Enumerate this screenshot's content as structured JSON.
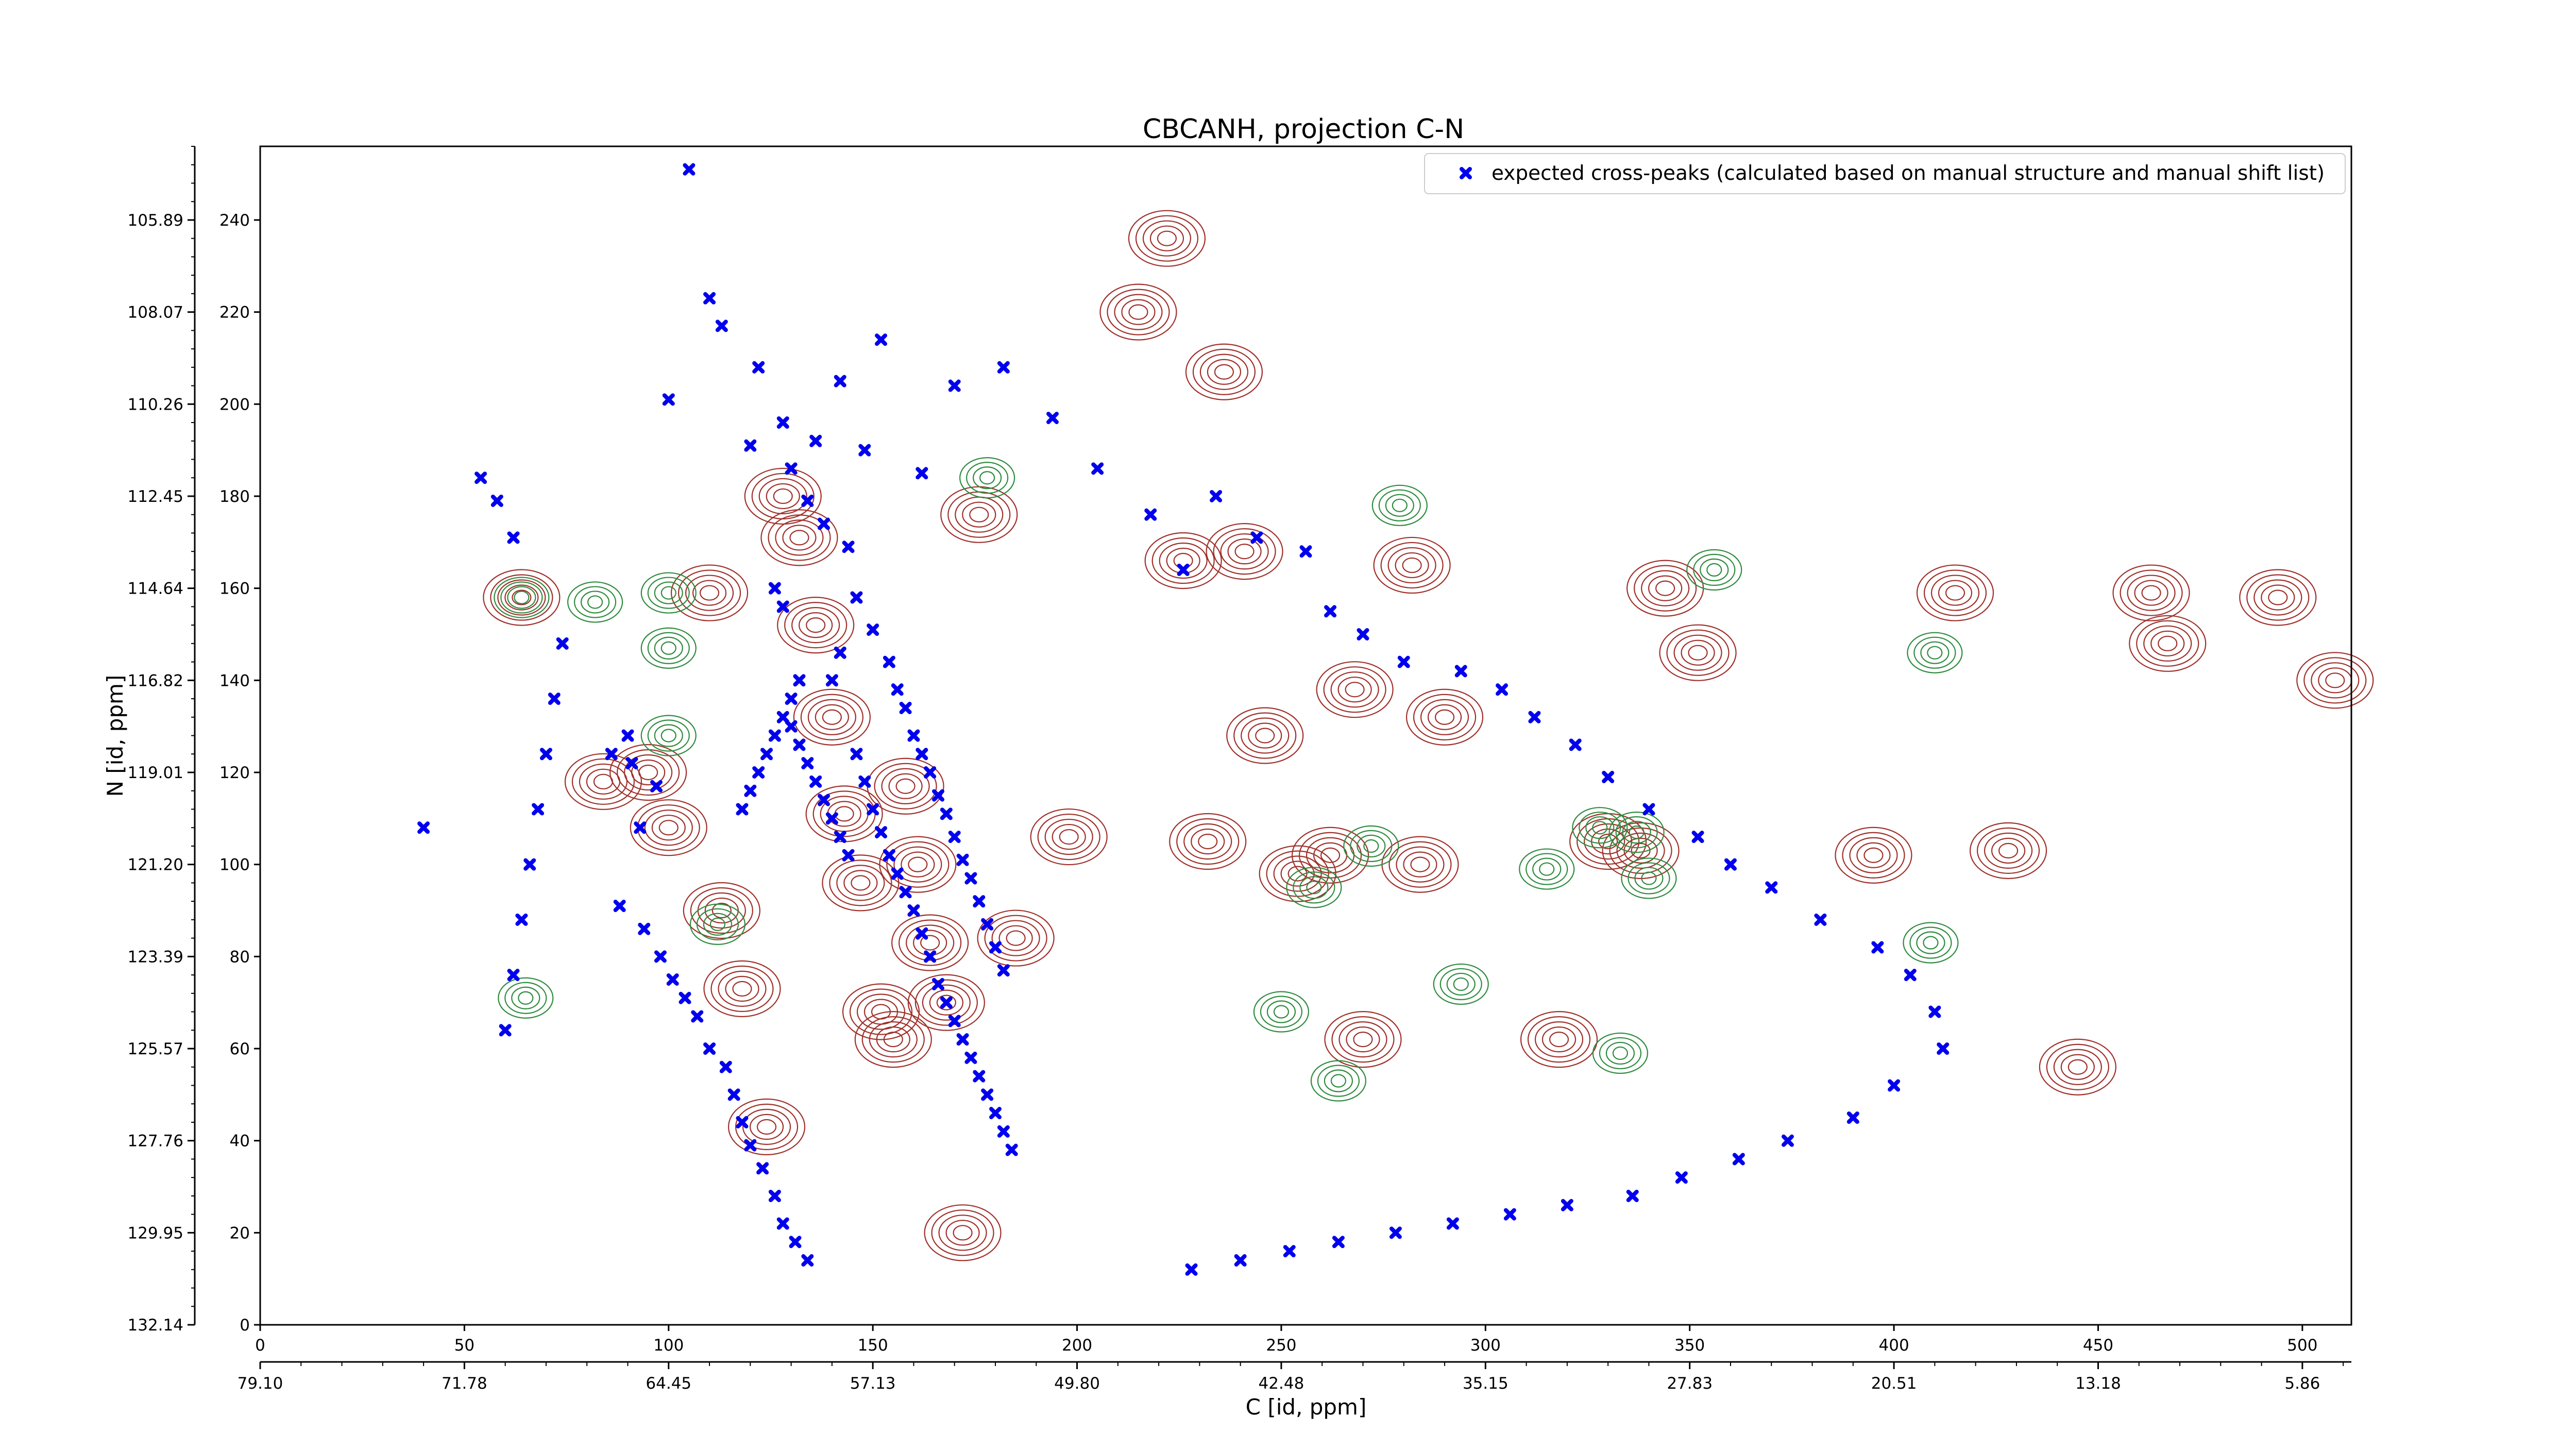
{
  "chart_data": {
    "type": "scatter",
    "title": "CBCANH, projection C-N",
    "xlabel": "C [id, ppm]",
    "ylabel": "N [id, ppm]",
    "xlim": [
      0,
      512
    ],
    "ylim": [
      0,
      256
    ],
    "x_ticks": [
      0,
      50,
      100,
      150,
      200,
      250,
      300,
      350,
      400,
      450,
      500
    ],
    "y_ticks": [
      0,
      20,
      40,
      60,
      80,
      100,
      120,
      140,
      160,
      180,
      200,
      220,
      240
    ],
    "x_ppm_tick_labels": [
      "79.10",
      "71.78",
      "64.45",
      "57.13",
      "49.80",
      "42.48",
      "35.15",
      "27.83",
      "20.51",
      "13.18",
      "5.86"
    ],
    "x_ppm_tick_index": [
      0,
      50,
      100,
      150,
      200,
      250,
      300,
      350,
      400,
      450,
      500
    ],
    "y_ppm_tick_labels": [
      "132.14",
      "129.95",
      "127.76",
      "125.57",
      "123.39",
      "121.20",
      "119.01",
      "116.82",
      "114.64",
      "112.45",
      "110.26",
      "108.07",
      "105.89"
    ],
    "y_ppm_tick_index": [
      0,
      20,
      40,
      60,
      80,
      100,
      120,
      140,
      160,
      180,
      200,
      220,
      240
    ],
    "legend": {
      "position": "top-right",
      "entries": [
        {
          "label": "expected cross-peaks (calculated based on manual structure and manual shift list)",
          "marker": "x",
          "color": "#0000ee"
        }
      ]
    },
    "colors": {
      "positive_contour": "#a0302a",
      "negative_contour": "#2e8b3e",
      "peak_marker": "#0000ee"
    },
    "contours": {
      "positive": [
        [
          64,
          158
        ],
        [
          84,
          118
        ],
        [
          95,
          120
        ],
        [
          100,
          108
        ],
        [
          110,
          159
        ],
        [
          113,
          90
        ],
        [
          118,
          73
        ],
        [
          124,
          43
        ],
        [
          128,
          180
        ],
        [
          132,
          171
        ],
        [
          136,
          152
        ],
        [
          140,
          132
        ],
        [
          143,
          111
        ],
        [
          147,
          96
        ],
        [
          152,
          68
        ],
        [
          155,
          62
        ],
        [
          158,
          117
        ],
        [
          161,
          100
        ],
        [
          164,
          83
        ],
        [
          168,
          70
        ],
        [
          172,
          20
        ],
        [
          176,
          176
        ],
        [
          185,
          84
        ],
        [
          198,
          106
        ],
        [
          215,
          220
        ],
        [
          222,
          236
        ],
        [
          226,
          166
        ],
        [
          232,
          105
        ],
        [
          236,
          207
        ],
        [
          241,
          168
        ],
        [
          246,
          128
        ],
        [
          254,
          98
        ],
        [
          262,
          102
        ],
        [
          268,
          138
        ],
        [
          270,
          62
        ],
        [
          282,
          165
        ],
        [
          284,
          100
        ],
        [
          290,
          132
        ],
        [
          318,
          62
        ],
        [
          330,
          105
        ],
        [
          338,
          103
        ],
        [
          344,
          160
        ],
        [
          352,
          146
        ],
        [
          395,
          102
        ],
        [
          415,
          159
        ],
        [
          428,
          103
        ],
        [
          445,
          56
        ],
        [
          463,
          159
        ],
        [
          467,
          148
        ],
        [
          494,
          158
        ],
        [
          508,
          140
        ]
      ],
      "negative": [
        [
          64,
          158
        ],
        [
          100,
          159
        ],
        [
          100,
          147
        ],
        [
          82,
          157
        ],
        [
          178,
          184
        ],
        [
          250,
          68
        ],
        [
          264,
          53
        ],
        [
          258,
          95
        ],
        [
          272,
          104
        ],
        [
          279,
          178
        ],
        [
          294,
          74
        ],
        [
          315,
          99
        ],
        [
          328,
          108
        ],
        [
          337,
          107
        ],
        [
          340,
          97
        ],
        [
          333,
          59
        ],
        [
          356,
          164
        ],
        [
          409,
          83
        ],
        [
          410,
          146
        ],
        [
          65,
          71
        ],
        [
          100,
          128
        ],
        [
          112,
          87
        ]
      ]
    },
    "peaks": [
      [
        105,
        251
      ],
      [
        97,
        117
      ],
      [
        90,
        128
      ],
      [
        100,
        201
      ],
      [
        120,
        191
      ],
      [
        130,
        186
      ],
      [
        136,
        192
      ],
      [
        142,
        205
      ],
      [
        152,
        214
      ],
      [
        148,
        190
      ],
      [
        162,
        185
      ],
      [
        170,
        204
      ],
      [
        182,
        208
      ],
      [
        194,
        197
      ],
      [
        205,
        186
      ],
      [
        218,
        176
      ],
      [
        226,
        164
      ],
      [
        234,
        180
      ],
      [
        244,
        171
      ],
      [
        256,
        168
      ],
      [
        262,
        155
      ],
      [
        270,
        150
      ],
      [
        280,
        144
      ],
      [
        294,
        142
      ],
      [
        304,
        138
      ],
      [
        312,
        132
      ],
      [
        322,
        126
      ],
      [
        330,
        119
      ],
      [
        340,
        112
      ],
      [
        352,
        106
      ],
      [
        360,
        100
      ],
      [
        370,
        95
      ],
      [
        382,
        88
      ],
      [
        396,
        82
      ],
      [
        404,
        76
      ],
      [
        410,
        68
      ],
      [
        412,
        60
      ],
      [
        400,
        52
      ],
      [
        390,
        45
      ],
      [
        374,
        40
      ],
      [
        362,
        36
      ],
      [
        348,
        32
      ],
      [
        336,
        28
      ],
      [
        320,
        26
      ],
      [
        306,
        24
      ],
      [
        292,
        22
      ],
      [
        278,
        20
      ],
      [
        264,
        18
      ],
      [
        252,
        16
      ],
      [
        240,
        14
      ],
      [
        228,
        12
      ],
      [
        110,
        223
      ],
      [
        113,
        217
      ],
      [
        122,
        208
      ],
      [
        128,
        196
      ],
      [
        134,
        179
      ],
      [
        138,
        174
      ],
      [
        144,
        169
      ],
      [
        146,
        158
      ],
      [
        150,
        151
      ],
      [
        154,
        144
      ],
      [
        156,
        138
      ],
      [
        158,
        134
      ],
      [
        160,
        128
      ],
      [
        162,
        124
      ],
      [
        164,
        120
      ],
      [
        166,
        115
      ],
      [
        168,
        111
      ],
      [
        170,
        106
      ],
      [
        172,
        101
      ],
      [
        174,
        97
      ],
      [
        176,
        92
      ],
      [
        178,
        87
      ],
      [
        180,
        82
      ],
      [
        182,
        77
      ],
      [
        126,
        160
      ],
      [
        128,
        156
      ],
      [
        140,
        140
      ],
      [
        142,
        146
      ],
      [
        146,
        124
      ],
      [
        148,
        118
      ],
      [
        150,
        112
      ],
      [
        152,
        107
      ],
      [
        154,
        102
      ],
      [
        156,
        98
      ],
      [
        158,
        94
      ],
      [
        160,
        90
      ],
      [
        162,
        85
      ],
      [
        164,
        80
      ],
      [
        166,
        74
      ],
      [
        168,
        70
      ],
      [
        170,
        66
      ],
      [
        172,
        62
      ],
      [
        174,
        58
      ],
      [
        176,
        54
      ],
      [
        178,
        50
      ],
      [
        180,
        46
      ],
      [
        182,
        42
      ],
      [
        184,
        38
      ],
      [
        130,
        130
      ],
      [
        132,
        126
      ],
      [
        134,
        122
      ],
      [
        136,
        118
      ],
      [
        138,
        114
      ],
      [
        140,
        110
      ],
      [
        142,
        106
      ],
      [
        144,
        102
      ],
      [
        118,
        112
      ],
      [
        120,
        116
      ],
      [
        122,
        120
      ],
      [
        124,
        124
      ],
      [
        126,
        128
      ],
      [
        128,
        132
      ],
      [
        130,
        136
      ],
      [
        132,
        140
      ],
      [
        60,
        64
      ],
      [
        62,
        76
      ],
      [
        64,
        88
      ],
      [
        66,
        100
      ],
      [
        68,
        112
      ],
      [
        70,
        124
      ],
      [
        72,
        136
      ],
      [
        74,
        148
      ],
      [
        40,
        108
      ],
      [
        54,
        184
      ],
      [
        58,
        179
      ],
      [
        62,
        171
      ],
      [
        86,
        124
      ],
      [
        91,
        122
      ],
      [
        93,
        108
      ],
      [
        88,
        91
      ],
      [
        94,
        86
      ],
      [
        98,
        80
      ],
      [
        101,
        75
      ],
      [
        104,
        71
      ],
      [
        107,
        67
      ],
      [
        110,
        60
      ],
      [
        114,
        56
      ],
      [
        116,
        50
      ],
      [
        118,
        44
      ],
      [
        120,
        39
      ],
      [
        123,
        34
      ],
      [
        126,
        28
      ],
      [
        128,
        22
      ],
      [
        131,
        18
      ],
      [
        134,
        14
      ]
    ]
  }
}
